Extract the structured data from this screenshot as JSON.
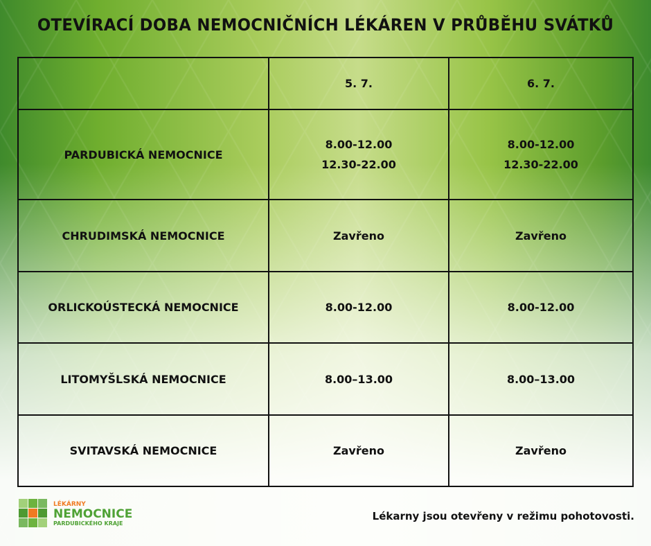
{
  "title": "OTEVÍRACÍ DOBA NEMOCNIČNÍCH LÉKÁREN V PRŮBĚHU SVÁTKŮ",
  "table": {
    "headers": [
      "",
      "5. 7.",
      "6. 7."
    ],
    "rows": [
      {
        "name": "PARDUBICKÁ NEMOCNICE",
        "d1": [
          "8.00-12.00",
          "12.30-22.00"
        ],
        "d2": [
          "8.00-12.00",
          "12.30-22.00"
        ]
      },
      {
        "name": "CHRUDIMSKÁ NEMOCNICE",
        "d1": [
          "Zavřeno"
        ],
        "d2": [
          "Zavřeno"
        ]
      },
      {
        "name": "ORLICKOÚSTECKÁ NEMOCNICE",
        "d1": [
          "8.00-12.00"
        ],
        "d2": [
          "8.00-12.00"
        ]
      },
      {
        "name": "LITOMYŠLSKÁ NEMOCNICE",
        "d1": [
          "8.00–13.00"
        ],
        "d2": [
          "8.00–13.00"
        ]
      },
      {
        "name": "SVITAVSKÁ NEMOCNICE",
        "d1": [
          "Zavřeno"
        ],
        "d2": [
          "Zavřeno"
        ]
      }
    ]
  },
  "logo": {
    "line1": "LÉKÁRNY",
    "line2": "NEMOCNICE",
    "line3": "PARDUBICKÉHO KRAJE",
    "accent": "#f07a22",
    "green": "#4fa235"
  },
  "note": "Lékarny jsou otevřeny v režimu pohotovosti."
}
